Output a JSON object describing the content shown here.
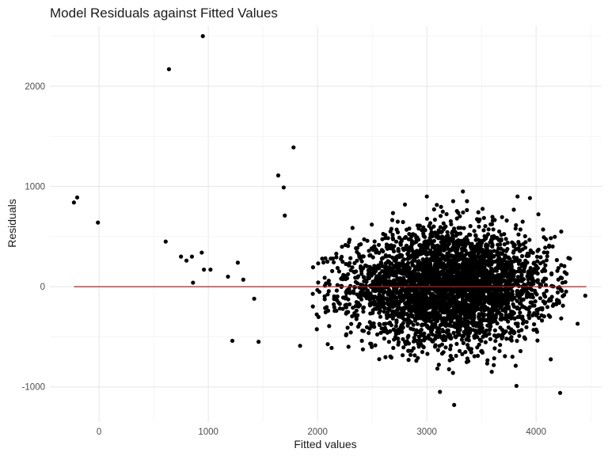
{
  "chart_data": {
    "type": "scatter",
    "title": "Model Residuals against Fitted Values",
    "xlabel": "Fitted values",
    "ylabel": "Residuals",
    "xlim": [
      -450,
      4600
    ],
    "ylim": [
      -1350,
      2600
    ],
    "x_ticks": [
      0,
      1000,
      2000,
      3000,
      4000
    ],
    "x_tick_labels": [
      "0",
      "1000",
      "2000",
      "3000",
      "4000"
    ],
    "y_ticks": [
      -1000,
      0,
      1000,
      2000
    ],
    "y_tick_labels": [
      "-1000",
      "0",
      "1000",
      "2000"
    ],
    "grid": true,
    "point_color": "#000000",
    "reference_line": {
      "y": 0,
      "x_range": [
        -230,
        4460
      ],
      "color": "#b22222"
    },
    "notable_points": [
      {
        "x": -230,
        "y": 840
      },
      {
        "x": -200,
        "y": 890
      },
      {
        "x": -10,
        "y": 640
      },
      {
        "x": 610,
        "y": 450
      },
      {
        "x": 640,
        "y": 2170
      },
      {
        "x": 950,
        "y": 2500
      },
      {
        "x": 750,
        "y": 300
      },
      {
        "x": 800,
        "y": 260
      },
      {
        "x": 850,
        "y": 300
      },
      {
        "x": 860,
        "y": 40
      },
      {
        "x": 960,
        "y": 170
      },
      {
        "x": 1020,
        "y": 170
      },
      {
        "x": 940,
        "y": 340
      },
      {
        "x": 1180,
        "y": 100
      },
      {
        "x": 1220,
        "y": -540
      },
      {
        "x": 1270,
        "y": 240
      },
      {
        "x": 1320,
        "y": 70
      },
      {
        "x": 1420,
        "y": -120
      },
      {
        "x": 1460,
        "y": -550
      },
      {
        "x": 1640,
        "y": 1110
      },
      {
        "x": 1690,
        "y": 990
      },
      {
        "x": 1700,
        "y": 710
      },
      {
        "x": 1780,
        "y": 1390
      },
      {
        "x": 1840,
        "y": -590
      },
      {
        "x": 3120,
        "y": -1050
      },
      {
        "x": 3250,
        "y": -1180
      },
      {
        "x": 3820,
        "y": -990
      },
      {
        "x": 4220,
        "y": -1060
      },
      {
        "x": 4450,
        "y": -90
      },
      {
        "x": 4380,
        "y": -370
      },
      {
        "x": 4310,
        "y": 280
      },
      {
        "x": 4230,
        "y": 550
      },
      {
        "x": 3830,
        "y": 900
      },
      {
        "x": 3330,
        "y": 950
      },
      {
        "x": 3000,
        "y": 900
      }
    ],
    "bulk_cloud": {
      "description_of_distribution": "dense cloud",
      "x_center": 3200,
      "x_sd": 450,
      "y_center": 0,
      "y_sd": 300,
      "x_range": [
        1900,
        4300
      ],
      "y_range": [
        -880,
        900
      ],
      "count": 3800
    }
  }
}
